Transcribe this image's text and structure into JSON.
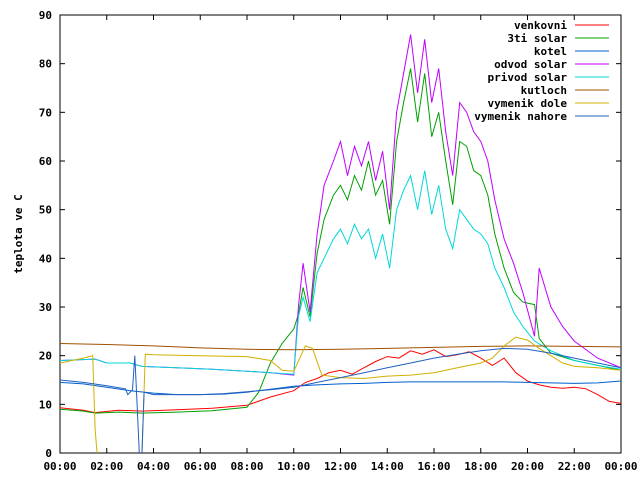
{
  "chart_data": {
    "type": "line",
    "title": "",
    "xlabel": "",
    "ylabel": "teplota ve C",
    "xlim": [
      0,
      24
    ],
    "ylim": [
      0,
      90
    ],
    "yticks": [
      0,
      10,
      20,
      30,
      40,
      50,
      60,
      70,
      80,
      90
    ],
    "xticks": [
      "00:00",
      "02:00",
      "04:00",
      "06:00",
      "08:00",
      "10:00",
      "12:00",
      "14:00",
      "16:00",
      "18:00",
      "20:00",
      "22:00",
      "00:00"
    ],
    "grid": false,
    "legend_position": "top-right",
    "series": [
      {
        "name": "venkovni",
        "color": "#ff0000",
        "points": [
          [
            0,
            9.3
          ],
          [
            1,
            8.8
          ],
          [
            1.5,
            8.3
          ],
          [
            2.5,
            8.8
          ],
          [
            3.5,
            8.6
          ],
          [
            5,
            8.9
          ],
          [
            6.5,
            9.2
          ],
          [
            8,
            9.8
          ],
          [
            9,
            11.5
          ],
          [
            10,
            12.8
          ],
          [
            10.5,
            14.5
          ],
          [
            11,
            15.3
          ],
          [
            11.5,
            16.5
          ],
          [
            12,
            17.0
          ],
          [
            12.5,
            16.2
          ],
          [
            13,
            17.5
          ],
          [
            13.5,
            18.8
          ],
          [
            14,
            19.8
          ],
          [
            14.5,
            19.5
          ],
          [
            15,
            21.0
          ],
          [
            15.5,
            20.3
          ],
          [
            16,
            21.2
          ],
          [
            16.5,
            19.8
          ],
          [
            17,
            20.2
          ],
          [
            17.5,
            20.8
          ],
          [
            18,
            19.5
          ],
          [
            18.5,
            18.0
          ],
          [
            19,
            19.5
          ],
          [
            19.5,
            16.5
          ],
          [
            20,
            14.8
          ],
          [
            20.5,
            14.0
          ],
          [
            21,
            13.5
          ],
          [
            21.5,
            13.3
          ],
          [
            22,
            13.5
          ],
          [
            22.5,
            13.2
          ],
          [
            23,
            12.0
          ],
          [
            23.5,
            10.6
          ],
          [
            24,
            10.2
          ]
        ]
      },
      {
        "name": "3ti solar",
        "color": "#00a000",
        "points": [
          [
            0,
            9.0
          ],
          [
            1,
            8.6
          ],
          [
            1.5,
            8.2
          ],
          [
            2.5,
            8.4
          ],
          [
            3.5,
            8.2
          ],
          [
            5,
            8.4
          ],
          [
            6.5,
            8.7
          ],
          [
            8,
            9.4
          ],
          [
            8.5,
            12.5
          ],
          [
            9,
            18.5
          ],
          [
            9.5,
            22.5
          ],
          [
            10,
            25.5
          ],
          [
            10.2,
            28.5
          ],
          [
            10.4,
            34
          ],
          [
            10.7,
            28
          ],
          [
            11,
            41
          ],
          [
            11.3,
            48
          ],
          [
            11.7,
            53
          ],
          [
            12,
            55
          ],
          [
            12.3,
            52
          ],
          [
            12.6,
            57
          ],
          [
            12.9,
            54
          ],
          [
            13.2,
            60
          ],
          [
            13.5,
            53
          ],
          [
            13.8,
            56
          ],
          [
            14.1,
            47
          ],
          [
            14.4,
            64
          ],
          [
            14.7,
            72
          ],
          [
            15,
            79
          ],
          [
            15.3,
            68
          ],
          [
            15.6,
            78
          ],
          [
            15.9,
            65
          ],
          [
            16.2,
            70
          ],
          [
            16.5,
            60
          ],
          [
            16.8,
            51
          ],
          [
            17.1,
            64
          ],
          [
            17.4,
            63
          ],
          [
            17.7,
            58
          ],
          [
            18,
            57
          ],
          [
            18.3,
            53
          ],
          [
            18.6,
            45
          ],
          [
            19,
            38
          ],
          [
            19.4,
            33
          ],
          [
            19.8,
            31
          ],
          [
            20.3,
            30.5
          ],
          [
            20.5,
            23.5
          ],
          [
            21,
            20.5
          ],
          [
            22,
            19.0
          ],
          [
            23,
            18.0
          ],
          [
            24,
            17.0
          ]
        ]
      },
      {
        "name": "kotel",
        "color": "#0060d0",
        "points": [
          [
            0,
            14.5
          ],
          [
            1,
            14.2
          ],
          [
            2,
            13.5
          ],
          [
            3,
            12.8
          ],
          [
            4,
            12.3
          ],
          [
            5,
            12.0
          ],
          [
            6,
            12.0
          ],
          [
            7,
            12.1
          ],
          [
            8,
            12.5
          ],
          [
            9,
            13.1
          ],
          [
            10,
            13.7
          ],
          [
            11,
            14.0
          ],
          [
            12,
            14.2
          ],
          [
            13,
            14.3
          ],
          [
            14,
            14.5
          ],
          [
            15,
            14.6
          ],
          [
            16,
            14.6
          ],
          [
            17,
            14.6
          ],
          [
            18,
            14.6
          ],
          [
            19,
            14.6
          ],
          [
            20,
            14.5
          ],
          [
            21,
            14.4
          ],
          [
            22,
            14.3
          ],
          [
            23,
            14.4
          ],
          [
            24,
            14.8
          ]
        ]
      },
      {
        "name": "odvod solar",
        "color": "#c000ff",
        "points": [
          [
            0,
            19.0
          ],
          [
            1.5,
            19.3
          ],
          [
            2,
            18.5
          ],
          [
            3,
            18.5
          ],
          [
            3.5,
            17.8
          ],
          [
            5,
            17.5
          ],
          [
            6.5,
            17.2
          ],
          [
            8,
            16.8
          ],
          [
            9,
            16.5
          ],
          [
            10,
            16.0
          ],
          [
            10.2,
            30
          ],
          [
            10.4,
            39
          ],
          [
            10.7,
            29
          ],
          [
            11,
            45
          ],
          [
            11.3,
            55
          ],
          [
            11.7,
            60
          ],
          [
            12,
            64
          ],
          [
            12.3,
            57
          ],
          [
            12.6,
            63
          ],
          [
            12.9,
            59
          ],
          [
            13.2,
            64
          ],
          [
            13.5,
            56
          ],
          [
            13.8,
            62
          ],
          [
            14.1,
            50
          ],
          [
            14.4,
            70
          ],
          [
            14.7,
            78
          ],
          [
            15,
            86
          ],
          [
            15.3,
            74
          ],
          [
            15.6,
            85
          ],
          [
            15.9,
            72
          ],
          [
            16.2,
            79
          ],
          [
            16.5,
            66
          ],
          [
            16.8,
            57
          ],
          [
            17.1,
            72
          ],
          [
            17.4,
            70
          ],
          [
            17.7,
            66
          ],
          [
            18,
            64
          ],
          [
            18.3,
            60
          ],
          [
            18.6,
            52
          ],
          [
            19,
            44
          ],
          [
            19.4,
            39
          ],
          [
            19.8,
            33
          ],
          [
            20.3,
            24
          ],
          [
            20.5,
            38
          ],
          [
            21,
            30
          ],
          [
            21.5,
            26
          ],
          [
            22,
            23
          ],
          [
            23,
            19.5
          ],
          [
            24,
            17.5
          ]
        ]
      },
      {
        "name": "privod solar",
        "color": "#00d8d8",
        "points": [
          [
            0,
            19.0
          ],
          [
            1.5,
            19.3
          ],
          [
            2,
            18.5
          ],
          [
            3,
            18.5
          ],
          [
            3.5,
            17.8
          ],
          [
            5,
            17.5
          ],
          [
            6.5,
            17.2
          ],
          [
            8,
            16.8
          ],
          [
            9,
            16.5
          ],
          [
            10,
            16.2
          ],
          [
            10.2,
            28
          ],
          [
            10.4,
            32
          ],
          [
            10.7,
            27
          ],
          [
            11,
            37
          ],
          [
            11.3,
            40
          ],
          [
            11.7,
            44
          ],
          [
            12,
            46
          ],
          [
            12.3,
            43
          ],
          [
            12.6,
            47
          ],
          [
            12.9,
            44
          ],
          [
            13.2,
            46
          ],
          [
            13.5,
            40
          ],
          [
            13.8,
            45
          ],
          [
            14.1,
            38
          ],
          [
            14.4,
            50
          ],
          [
            14.7,
            54
          ],
          [
            15,
            57
          ],
          [
            15.3,
            50
          ],
          [
            15.6,
            58
          ],
          [
            15.9,
            49
          ],
          [
            16.2,
            55
          ],
          [
            16.5,
            46
          ],
          [
            16.8,
            42
          ],
          [
            17.1,
            50
          ],
          [
            17.4,
            48
          ],
          [
            17.7,
            46
          ],
          [
            18,
            45
          ],
          [
            18.3,
            43
          ],
          [
            18.6,
            38
          ],
          [
            19,
            34
          ],
          [
            19.4,
            29
          ],
          [
            19.8,
            26
          ],
          [
            20.3,
            23
          ],
          [
            21,
            21
          ],
          [
            22,
            19
          ],
          [
            23,
            18
          ],
          [
            24,
            17.2
          ]
        ]
      },
      {
        "name": "kutloch",
        "color": "#a05000",
        "points": [
          [
            0,
            22.5
          ],
          [
            2,
            22.3
          ],
          [
            4,
            22.0
          ],
          [
            6,
            21.6
          ],
          [
            8,
            21.3
          ],
          [
            10,
            21.2
          ],
          [
            12,
            21.3
          ],
          [
            14,
            21.5
          ],
          [
            16,
            21.7
          ],
          [
            18,
            21.9
          ],
          [
            20,
            22.0
          ],
          [
            22,
            21.9
          ],
          [
            24,
            21.8
          ]
        ]
      },
      {
        "name": "vymenik dole",
        "color": "#d0b000",
        "points": [
          [
            0,
            18.5
          ],
          [
            1,
            19.5
          ],
          [
            1.4,
            20.0
          ],
          [
            1.5,
            5
          ],
          [
            1.6,
            -1
          ],
          [
            2,
            -1
          ],
          [
            3,
            -1
          ],
          [
            3.5,
            -1
          ],
          [
            3.65,
            20.3
          ],
          [
            4,
            20.2
          ],
          [
            6,
            20.0
          ],
          [
            8,
            19.8
          ],
          [
            9,
            19.0
          ],
          [
            9.5,
            17.0
          ],
          [
            10,
            16.8
          ],
          [
            10.5,
            22.0
          ],
          [
            10.8,
            21.5
          ],
          [
            11.2,
            16.0
          ],
          [
            12,
            15.5
          ],
          [
            13,
            15.3
          ],
          [
            14,
            15.8
          ],
          [
            15,
            16.0
          ],
          [
            16,
            16.5
          ],
          [
            17,
            17.5
          ],
          [
            18,
            18.5
          ],
          [
            18.5,
            19.5
          ],
          [
            19,
            22.0
          ],
          [
            19.5,
            23.8
          ],
          [
            20,
            23.2
          ],
          [
            20.5,
            21.5
          ],
          [
            21,
            20.0
          ],
          [
            21.5,
            18.5
          ],
          [
            22,
            17.8
          ],
          [
            23,
            17.5
          ],
          [
            24,
            17.0
          ]
        ]
      },
      {
        "name": "vymenik nahore",
        "color": "#2060c0",
        "points": [
          [
            0,
            15.0
          ],
          [
            1,
            14.5
          ],
          [
            2,
            13.8
          ],
          [
            2.8,
            13.2
          ],
          [
            2.9,
            12.0
          ],
          [
            3.1,
            13.0
          ],
          [
            3.2,
            20.0
          ],
          [
            3.3,
            10
          ],
          [
            3.4,
            -1
          ],
          [
            3.5,
            -1
          ],
          [
            3.6,
            12.5
          ],
          [
            4,
            12.0
          ],
          [
            5,
            12.0
          ],
          [
            6,
            12.0
          ],
          [
            7,
            12.2
          ],
          [
            8,
            12.6
          ],
          [
            9,
            13.0
          ],
          [
            10,
            13.5
          ],
          [
            11,
            14.5
          ],
          [
            12,
            15.5
          ],
          [
            13,
            16.5
          ],
          [
            14,
            17.5
          ],
          [
            15,
            18.5
          ],
          [
            16,
            19.5
          ],
          [
            17,
            20.3
          ],
          [
            18,
            21.0
          ],
          [
            19,
            21.5
          ],
          [
            20,
            21.3
          ],
          [
            21,
            20.5
          ],
          [
            22,
            19.5
          ],
          [
            23,
            18.5
          ],
          [
            24,
            17.5
          ]
        ]
      }
    ]
  }
}
